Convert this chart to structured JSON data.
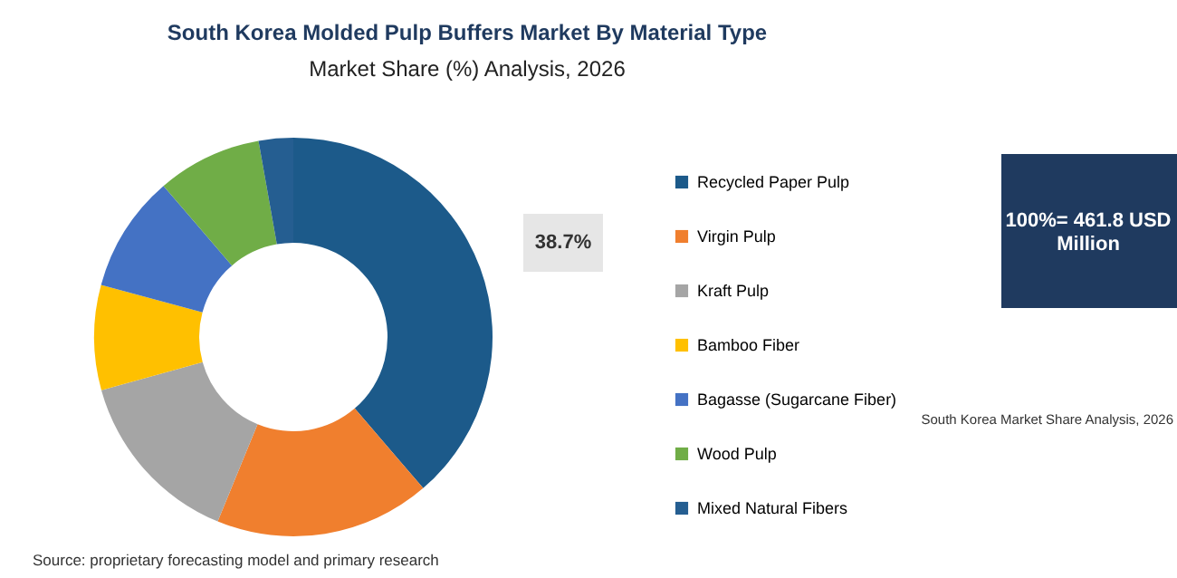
{
  "chart_data": {
    "type": "donut",
    "title": "South Korea Molded Pulp Buffers Market By Material Type",
    "subtitle": "Market Share (%) Analysis, 2026",
    "categories": [
      "Recycled Paper Pulp",
      "Virgin Pulp",
      "Kraft Pulp",
      "Bamboo Fiber",
      "Bagasse (Sugarcane Fiber)",
      "Wood Pulp",
      "Mixed Natural Fibers"
    ],
    "values": [
      38.7,
      17.5,
      14.5,
      8.5,
      9.5,
      8.5,
      2.8
    ],
    "colors": [
      "#1c5a8a",
      "#f07f2e",
      "#a5a5a5",
      "#ffc000",
      "#4472c4",
      "#70ad47",
      "#255e91"
    ],
    "value_labels": [
      "38.7%",
      null,
      null,
      null,
      null,
      null,
      null
    ],
    "legend": "right",
    "annotations": [
      "100%= 461.8 USD Million",
      "South Korea Market Share Analysis, 2026",
      "Source: proprietary forecasting model and primary research"
    ]
  }
}
